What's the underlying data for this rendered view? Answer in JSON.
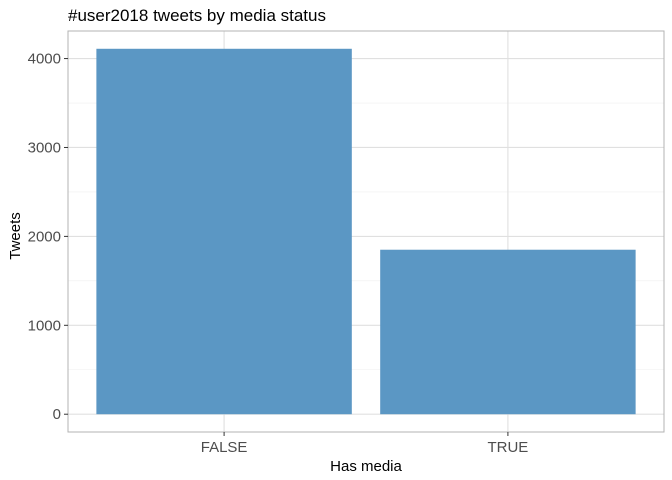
{
  "chart_data": {
    "type": "bar",
    "title": "#user2018 tweets by media status",
    "xlabel": "Has media",
    "ylabel": "Tweets",
    "categories": [
      "FALSE",
      "TRUE"
    ],
    "values": [
      4110,
      1850
    ],
    "ylim": [
      -200,
      4310
    ],
    "yticks": [
      0,
      1000,
      2000,
      3000,
      4000
    ],
    "ytick_labels": [
      "0",
      "1000",
      "2000",
      "3000",
      "4000"
    ],
    "grid": true,
    "legend": "none",
    "colors": {
      "bar": "#5b97c4",
      "grid_major": "#e0e0e0",
      "grid_minor": "#efefef",
      "panel_border": "#b3b3b3",
      "tick": "#333333"
    }
  }
}
